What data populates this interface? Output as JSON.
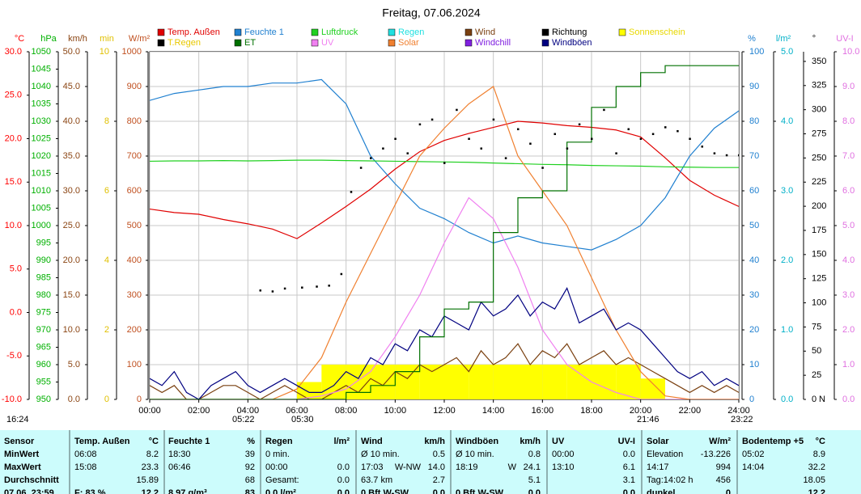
{
  "chart_data": {
    "type": "multi-axis-line",
    "title": "Freitag, 07.06.2024",
    "x": [
      0,
      1,
      2,
      3,
      4,
      5,
      6,
      7,
      8,
      9,
      10,
      11,
      12,
      13,
      14,
      15,
      16,
      17,
      18,
      19,
      20,
      21,
      22,
      23,
      24
    ],
    "xlim": [
      0,
      24
    ],
    "xticks": [
      {
        "value": 0,
        "label": "00:00"
      },
      {
        "value": 2,
        "label": "02:00"
      },
      {
        "value": 4,
        "label": "04:00"
      },
      {
        "value": 6,
        "label": "06:00"
      },
      {
        "value": 8,
        "label": "08:00"
      },
      {
        "value": 10,
        "label": "10:00"
      },
      {
        "value": 12,
        "label": "12:00"
      },
      {
        "value": 14,
        "label": "14:00"
      },
      {
        "value": 16,
        "label": "16:00"
      },
      {
        "value": 18,
        "label": "18:00"
      },
      {
        "value": 20,
        "label": "20:00"
      },
      {
        "value": 22,
        "label": "22:00"
      },
      {
        "value": 24,
        "label": "24:00"
      }
    ],
    "grid": true,
    "axes": [
      {
        "unit": "°C",
        "side": "left",
        "color": "#ff0000",
        "lim": [
          -10,
          30
        ],
        "ticks": [
          {
            "value": -10,
            "label": "-10.0"
          },
          {
            "value": -5,
            "label": "-5.0"
          },
          {
            "value": 0,
            "label": "0.0"
          },
          {
            "value": 5,
            "label": "5.0"
          },
          {
            "value": 10,
            "label": "10.0"
          },
          {
            "value": 15,
            "label": "15.0"
          },
          {
            "value": 20,
            "label": "20.0"
          },
          {
            "value": 25,
            "label": "25.0"
          },
          {
            "value": 30,
            "label": "30.0"
          }
        ]
      },
      {
        "unit": "hPa",
        "side": "left",
        "color": "#00b000",
        "lim": [
          950,
          1050
        ],
        "ticks": [
          950,
          955,
          960,
          965,
          970,
          975,
          980,
          985,
          990,
          995,
          1000,
          1005,
          1010,
          1015,
          1020,
          1025,
          1030,
          1035,
          1040,
          1045,
          1050
        ]
      },
      {
        "unit": "km/h",
        "side": "left",
        "color": "#8b4513",
        "lim": [
          0,
          50
        ],
        "ticks": [
          {
            "value": 0,
            "label": "0.0"
          },
          {
            "value": 5,
            "label": "5.0"
          },
          {
            "value": 10,
            "label": "10.0"
          },
          {
            "value": 15,
            "label": "15.0"
          },
          {
            "value": 20,
            "label": "20.0"
          },
          {
            "value": 25,
            "label": "25.0"
          },
          {
            "value": 30,
            "label": "30.0"
          },
          {
            "value": 35,
            "label": "35.0"
          },
          {
            "value": 40,
            "label": "40.0"
          },
          {
            "value": 45,
            "label": "45.0"
          },
          {
            "value": 50,
            "label": "50.0"
          }
        ]
      },
      {
        "unit": "min",
        "side": "left",
        "color": "#e0c000",
        "lim": [
          0,
          10
        ],
        "ticks": [
          0,
          2,
          4,
          6,
          8,
          10
        ]
      },
      {
        "unit": "W/m²",
        "side": "left",
        "color": "#c05020",
        "lim": [
          0,
          1000
        ],
        "ticks": [
          0,
          100,
          200,
          300,
          400,
          500,
          600,
          700,
          800,
          900,
          1000
        ],
        "grid": true
      },
      {
        "unit": "%",
        "side": "right",
        "color": "#2080d0",
        "lim": [
          0,
          100
        ],
        "ticks": [
          0,
          10,
          20,
          30,
          40,
          50,
          60,
          70,
          80,
          90,
          100
        ]
      },
      {
        "unit": "l/m²",
        "side": "right",
        "color": "#00b0c8",
        "lim": [
          0,
          5
        ],
        "ticks": [
          {
            "value": 0,
            "label": "0.0"
          },
          {
            "value": 1,
            "label": "1.0"
          },
          {
            "value": 2,
            "label": "2.0"
          },
          {
            "value": 3,
            "label": "3.0"
          },
          {
            "value": 4,
            "label": "4.0"
          },
          {
            "value": 5,
            "label": "5.0"
          }
        ]
      },
      {
        "unit": "°",
        "side": "right",
        "color": "#000000",
        "lim": [
          0,
          360
        ],
        "ticks": [
          0,
          25,
          50,
          75,
          100,
          125,
          150,
          175,
          200,
          225,
          250,
          275,
          300,
          325,
          350
        ]
      },
      {
        "unit": "UV-I",
        "side": "right",
        "color": "#e070e0",
        "lim": [
          0,
          10
        ],
        "ticks": [
          {
            "value": 0,
            "label": "0.0"
          },
          {
            "value": 1,
            "label": "1.0"
          },
          {
            "value": 2,
            "label": "2.0"
          },
          {
            "value": 3,
            "label": "3.0"
          },
          {
            "value": 4,
            "label": "4.0"
          },
          {
            "value": 5,
            "label": "5.0"
          },
          {
            "value": 6,
            "label": "6.0"
          },
          {
            "value": 7,
            "label": "7.0"
          },
          {
            "value": 8,
            "label": "8.0"
          },
          {
            "value": 9,
            "label": "9.0"
          },
          {
            "value": 10,
            "label": "10.0"
          }
        ]
      }
    ],
    "series": [
      {
        "name": "Temp. Außen",
        "color": "#e00000",
        "axis": 0,
        "style": "line",
        "values": [
          11.9,
          11.5,
          11.3,
          10.7,
          10.2,
          9.6,
          8.5,
          10.3,
          12.2,
          14.2,
          16.5,
          18.5,
          19.8,
          20.6,
          21.3,
          22.0,
          21.8,
          21.5,
          21.3,
          21.0,
          20.2,
          17.8,
          15.2,
          13.5,
          12.2
        ]
      },
      {
        "name": "Feuchte 1",
        "color": "#2080d0",
        "axis": 5,
        "style": "line",
        "values": [
          86,
          88,
          89,
          90,
          90,
          91,
          91,
          92,
          85,
          70,
          62,
          55,
          52,
          48,
          45,
          47,
          45,
          44,
          43,
          46,
          50,
          58,
          70,
          78,
          83
        ]
      },
      {
        "name": "Luftdruck",
        "color": "#20d020",
        "axis": 1,
        "style": "line",
        "values": [
          1018.5,
          1018.6,
          1018.6,
          1018.7,
          1018.6,
          1018.7,
          1018.8,
          1018.8,
          1018.7,
          1018.6,
          1018.5,
          1018.4,
          1018.3,
          1018.2,
          1018.0,
          1017.8,
          1017.6,
          1017.5,
          1017.3,
          1017.2,
          1017.1,
          1016.9,
          1016.8,
          1016.7,
          1016.7
        ]
      },
      {
        "name": "Regen",
        "color": "#20e0e0"
      },
      {
        "name": "Wind",
        "color": "#7a4010",
        "axis": 2,
        "style": "line",
        "x": [
          0,
          0.5,
          1,
          1.5,
          2,
          2.5,
          3,
          3.5,
          4,
          4.5,
          5,
          5.5,
          6,
          6.5,
          7,
          7.5,
          8,
          8.5,
          9,
          9.5,
          10,
          10.5,
          11,
          11.5,
          12,
          12.5,
          13,
          13.5,
          14,
          14.5,
          15,
          15.5,
          16,
          16.5,
          17,
          17.5,
          18,
          18.5,
          19,
          19.5,
          20,
          20.5,
          21,
          21.5,
          22,
          22.5,
          23,
          23.5,
          24
        ],
        "values": [
          2,
          1,
          2,
          0,
          0,
          1,
          2,
          2,
          1,
          0,
          1,
          2,
          1,
          0,
          0,
          1,
          2,
          1,
          3,
          2,
          4,
          3,
          5,
          4,
          5,
          6,
          4,
          7,
          5,
          6,
          8,
          5,
          7,
          6,
          8,
          5,
          6,
          7,
          5,
          6,
          5,
          4,
          3,
          2,
          1,
          2,
          1,
          2,
          1
        ]
      },
      {
        "name": "Richtung",
        "color": "#000000",
        "axis": 7,
        "style": "dots",
        "x": [
          4.5,
          5,
          5.5,
          6.2,
          6.8,
          7.3,
          7.8,
          8.2,
          8.6,
          9,
          9.5,
          10,
          10.5,
          11,
          11.5,
          12,
          12.5,
          13,
          13.5,
          14,
          14.5,
          15,
          15.5,
          16,
          16.5,
          17,
          17.5,
          18,
          18.5,
          19,
          19.5,
          20,
          20.5,
          21,
          21.5,
          22,
          22.5,
          23,
          23.5,
          24
        ],
        "values": [
          113,
          112,
          115,
          116,
          117,
          118,
          130,
          215,
          240,
          250,
          260,
          270,
          255,
          285,
          290,
          245,
          300,
          270,
          260,
          290,
          250,
          280,
          265,
          240,
          275,
          260,
          285,
          270,
          300,
          255,
          280,
          270,
          275,
          282,
          278,
          270,
          262,
          255,
          253,
          253
        ]
      },
      {
        "name": "Sonnenschein",
        "color": "#ffff00",
        "text_color": "#e8d800",
        "axis": 3,
        "style": "bars",
        "values": [
          0,
          0,
          0,
          0,
          0,
          0,
          0.5,
          1,
          1,
          1,
          1,
          1,
          1,
          1,
          1,
          1,
          1,
          1,
          1,
          1,
          0.6,
          0,
          0,
          0,
          0
        ]
      },
      {
        "name": "T.Regen",
        "color": "#000000",
        "text_color": "#e8c800"
      },
      {
        "name": "ET",
        "color": "#007000",
        "axis": 6,
        "style": "step",
        "values": [
          0,
          0,
          0,
          0,
          0,
          0,
          0,
          0,
          0.1,
          0.2,
          0.4,
          0.9,
          1.3,
          1.4,
          2.4,
          2.9,
          3.0,
          3.7,
          4.2,
          4.5,
          4.7,
          4.8,
          4.8,
          4.8,
          4.8
        ]
      },
      {
        "name": "UV",
        "color": "#f080f0",
        "axis": 8,
        "style": "line",
        "values": [
          0,
          0,
          0,
          0,
          0,
          0,
          0,
          0.1,
          0.3,
          0.8,
          1.8,
          3.0,
          4.5,
          5.8,
          5.2,
          3.8,
          2.0,
          1.0,
          0.5,
          0.2,
          0,
          0,
          0,
          0,
          0
        ]
      },
      {
        "name": "Solar",
        "color": "#f08030",
        "axis": 4,
        "style": "line",
        "values": [
          0,
          0,
          0,
          0,
          0,
          0,
          30,
          120,
          280,
          420,
          560,
          700,
          780,
          850,
          900,
          700,
          600,
          500,
          350,
          200,
          80,
          10,
          0,
          0,
          0
        ]
      },
      {
        "name": "Windchill",
        "color": "#8020e0"
      },
      {
        "name": "Windböen",
        "color": "#000080",
        "axis": 2,
        "style": "line",
        "x": [
          0,
          0.5,
          1,
          1.5,
          2,
          2.5,
          3,
          3.5,
          4,
          4.5,
          5,
          5.5,
          6,
          6.5,
          7,
          7.5,
          8,
          8.5,
          9,
          9.5,
          10,
          10.5,
          11,
          11.5,
          12,
          12.5,
          13,
          13.5,
          14,
          14.5,
          15,
          15.5,
          16,
          16.5,
          17,
          17.5,
          18,
          18.5,
          19,
          19.5,
          20,
          20.5,
          21,
          21.5,
          22,
          22.5,
          23,
          23.5,
          24
        ],
        "values": [
          3,
          2,
          4,
          1,
          0,
          2,
          3,
          4,
          2,
          1,
          2,
          3,
          2,
          1,
          1,
          2,
          4,
          3,
          6,
          5,
          8,
          7,
          10,
          9,
          12,
          11,
          10,
          14,
          12,
          13,
          15,
          12,
          14,
          13,
          16,
          11,
          12,
          13,
          10,
          11,
          10,
          8,
          6,
          4,
          3,
          4,
          2,
          3,
          2
        ]
      }
    ],
    "annotations": [
      "16:24",
      "05:22",
      "05:30",
      "21:46",
      "23:22",
      "N"
    ]
  },
  "stats_table": {
    "header": [
      "Sensor",
      {
        "l": "Temp. Außen",
        "r": "°C"
      },
      {
        "l": "Feuchte 1",
        "r": "%"
      },
      {
        "l": "Regen",
        "r": "l/m²"
      },
      {
        "l": "Wind",
        "r": "km/h"
      },
      {
        "l": "Windböen",
        "r": "km/h"
      },
      {
        "l": "UV",
        "r": "UV-I"
      },
      {
        "l": "Solar",
        "r": "W/m²"
      },
      {
        "l": "Bodentemp +5",
        "r": "°C"
      }
    ],
    "rows": [
      [
        "MinWert",
        {
          "l": "06:08",
          "r": "8.2"
        },
        {
          "l": "18:30",
          "r": "39"
        },
        {
          "l": "0 min."
        },
        {
          "l": "Ø 10 min.",
          "r": "0.5"
        },
        {
          "l": "Ø 10 min.",
          "r": "0.8"
        },
        {
          "l": "00:00",
          "r": "0.0"
        },
        {
          "l": "Elevation",
          "r": "-13.226"
        },
        {
          "l": "05:02",
          "r": "8.9"
        }
      ],
      [
        "MaxWert",
        {
          "l": "15:08",
          "r": "23.3"
        },
        {
          "l": "06:46",
          "r": "92"
        },
        {
          "l": "00:00",
          "r": "0.0"
        },
        {
          "l": "17:03",
          "m": "W-NW",
          "r": "14.0"
        },
        {
          "l": "18:19",
          "m": "W",
          "r": "24.1"
        },
        {
          "l": "13:10",
          "r": "6.1"
        },
        {
          "l": "14:17",
          "r": "994"
        },
        {
          "l": "14:04",
          "r": "32.2"
        }
      ],
      [
        "Durchschnitt",
        {
          "r": "15.89"
        },
        {
          "r": "68"
        },
        {
          "l": "Gesamt:",
          "r": "0.0"
        },
        {
          "l": "63.7 km",
          "r": "2.7"
        },
        {
          "r": "5.1"
        },
        {
          "r": "3.1"
        },
        {
          "l": "Tag:14:02 h",
          "r": "456"
        },
        {
          "r": "18.05"
        }
      ],
      [
        "07.06. 23:59",
        {
          "l": "F: 83 %",
          "r": "12.2"
        },
        {
          "l": "8.97 g/m³",
          "r": "83"
        },
        {
          "l": "0.0 l/m²",
          "r": "0.0"
        },
        {
          "l": "0 Bft W-SW",
          "r": "0.0"
        },
        {
          "l": "0 Bft W-SW",
          "r": "0.0"
        },
        {
          "r": "0.0"
        },
        {
          "l": "dunkel",
          "r": "0"
        },
        {
          "r": "12.2"
        }
      ]
    ]
  }
}
